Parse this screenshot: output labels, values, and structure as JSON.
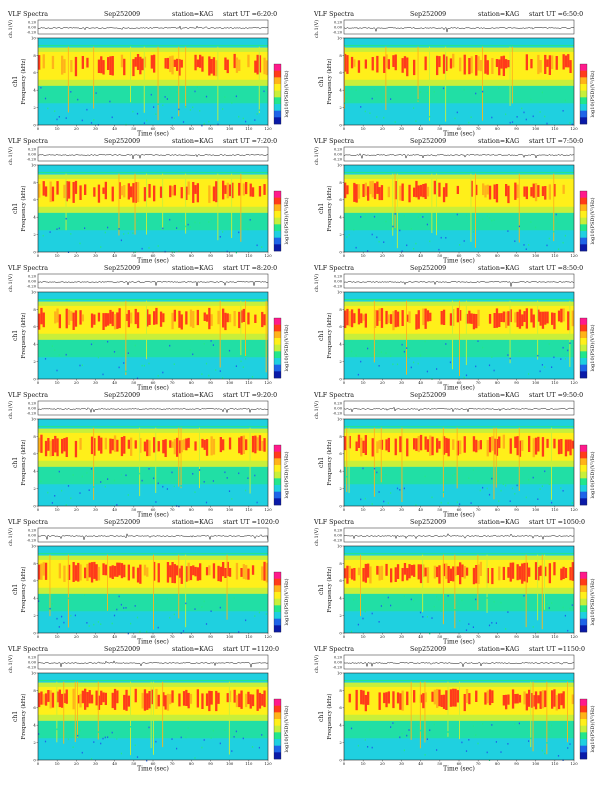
{
  "document": {
    "figure_type": "VLF spectrogram grid",
    "columns": 2,
    "rows": 6,
    "colormap": [
      "#0a1aa8",
      "#1f64e8",
      "#1fd0e0",
      "#22e68c",
      "#c8ef3a",
      "#ffef1a",
      "#ffb31a",
      "#ff3b1a",
      "#ff1a8c"
    ]
  },
  "panels": [
    {
      "title": "VLF Spectra",
      "date": "Sep252009",
      "station": "station=KAG",
      "start": "start UT =6:20:0"
    },
    {
      "title": "VLF Spectra",
      "date": "Sep252009",
      "station": "station=KAG",
      "start": "start UT =6:50:0"
    },
    {
      "title": "VLF Spectra",
      "date": "Sep252009",
      "station": "station=KAG",
      "start": "start UT =7:20:0"
    },
    {
      "title": "VLF Spectra",
      "date": "Sep252009",
      "station": "station=KAG",
      "start": "start UT =7:50:0"
    },
    {
      "title": "VLF Spectra",
      "date": "Sep252009",
      "station": "station=KAG",
      "start": "start UT =8:20:0"
    },
    {
      "title": "VLF Spectra",
      "date": "Sep252009",
      "station": "station=KAG",
      "start": "start UT =8:50:0"
    },
    {
      "title": "VLF Spectra",
      "date": "Sep252009",
      "station": "station=KAG",
      "start": "start UT =9:20:0"
    },
    {
      "title": "VLF Spectra",
      "date": "Sep252009",
      "station": "station=KAG",
      "start": "start UT =9:50:0"
    },
    {
      "title": "VLF Spectra",
      "date": "Sep252009",
      "station": "station=KAG",
      "start": "start UT =1020:0"
    },
    {
      "title": "VLF Spectra",
      "date": "Sep252009",
      "station": "station=KAG",
      "start": "start UT =1050:0"
    },
    {
      "title": "VLF Spectra",
      "date": "Sep252009",
      "station": "station=KAG",
      "start": "start UT =1120:0"
    },
    {
      "title": "VLF Spectra",
      "date": "Sep252009",
      "station": "station=KAG",
      "start": "start UT =1150:0"
    }
  ],
  "chart_data": {
    "type": "heatmap",
    "xlabel": "Time (sec)",
    "ylabel": "Frequency (kHz)",
    "waveform_label": "ch.1(V)",
    "channel_label": "ch1",
    "colorbar_label": "log10(PSD)(V²/Hz)",
    "xlim": [
      0,
      120
    ],
    "ylim": [
      0,
      10
    ],
    "x_ticks": [
      0,
      10,
      20,
      30,
      40,
      50,
      60,
      70,
      80,
      90,
      100,
      110,
      120
    ],
    "y_ticks": [
      0,
      2,
      4,
      6,
      8,
      10
    ],
    "waveform_ticks": [
      "0.20",
      "0.00",
      "-0.20"
    ]
  }
}
